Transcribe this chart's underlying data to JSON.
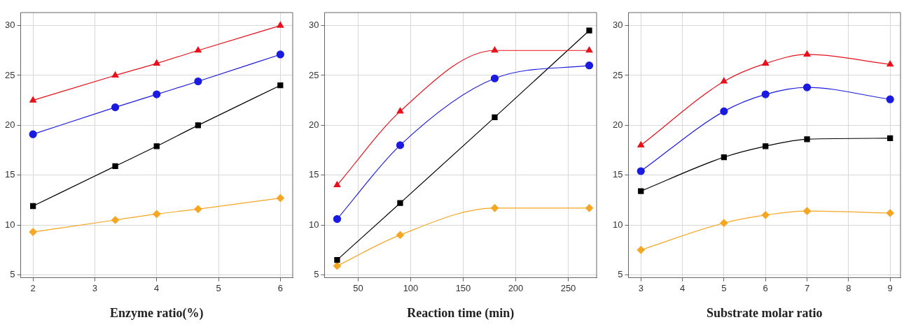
{
  "chart_data": [
    {
      "type": "line",
      "xlabel": "Enzyme ratio(%)",
      "x": [
        2,
        3.33,
        4,
        4.67,
        6
      ],
      "xlim": [
        1.8,
        6.2
      ],
      "xticks": [
        2,
        3,
        4,
        5,
        6
      ],
      "ylim": [
        4.7,
        31.3
      ],
      "yticks": [
        5,
        10,
        15,
        20,
        25,
        30
      ],
      "grid": true,
      "legend": false,
      "series": [
        {
          "color": "#e8101a",
          "marker": "triangle",
          "values": [
            22.5,
            25,
            26.2,
            27.5,
            30
          ]
        },
        {
          "color": "#1a1ae0",
          "marker": "circle",
          "values": [
            19.1,
            21.8,
            23.1,
            24.4,
            27.1
          ]
        },
        {
          "color": "#000000",
          "marker": "square",
          "values": [
            11.9,
            15.9,
            17.9,
            20,
            24
          ]
        },
        {
          "color": "#f5a623",
          "marker": "diamond",
          "values": [
            9.3,
            10.5,
            11.1,
            11.6,
            12.7
          ]
        }
      ]
    },
    {
      "type": "line",
      "xlabel": "Reaction time (min)",
      "x": [
        30,
        90,
        180,
        270
      ],
      "xlim": [
        18,
        277
      ],
      "xticks": [
        50,
        100,
        150,
        200,
        250
      ],
      "ylim": [
        4.7,
        31.3
      ],
      "yticks": [
        5,
        10,
        15,
        20,
        25,
        30
      ],
      "grid": true,
      "legend": false,
      "series": [
        {
          "color": "#e8101a",
          "marker": "triangle",
          "values": [
            14,
            21.4,
            27.5,
            27.5
          ]
        },
        {
          "color": "#1a1ae0",
          "marker": "circle",
          "values": [
            10.6,
            18,
            24.7,
            26
          ]
        },
        {
          "color": "#000000",
          "marker": "square",
          "values": [
            6.5,
            12.2,
            20.8,
            29.5
          ]
        },
        {
          "color": "#f5a623",
          "marker": "diamond",
          "values": [
            5.9,
            9,
            11.7,
            11.7
          ]
        }
      ]
    },
    {
      "type": "line",
      "xlabel": "Substrate molar ratio",
      "x": [
        3,
        5,
        6,
        7,
        9
      ],
      "xlim": [
        2.7,
        9.25
      ],
      "xticks": [
        3,
        4,
        5,
        6,
        7,
        8,
        9
      ],
      "ylim": [
        4.7,
        31.3
      ],
      "yticks": [
        5,
        10,
        15,
        20,
        25,
        30
      ],
      "grid": true,
      "legend": false,
      "series": [
        {
          "color": "#e8101a",
          "marker": "triangle",
          "values": [
            18,
            24.4,
            26.2,
            27.1,
            26.1
          ]
        },
        {
          "color": "#1a1ae0",
          "marker": "circle",
          "values": [
            15.4,
            21.4,
            23.1,
            23.8,
            22.6
          ]
        },
        {
          "color": "#000000",
          "marker": "square",
          "values": [
            13.4,
            16.8,
            17.9,
            18.6,
            18.7
          ]
        },
        {
          "color": "#f5a623",
          "marker": "diamond",
          "values": [
            7.5,
            10.2,
            11,
            11.4,
            11.2
          ]
        }
      ]
    }
  ]
}
